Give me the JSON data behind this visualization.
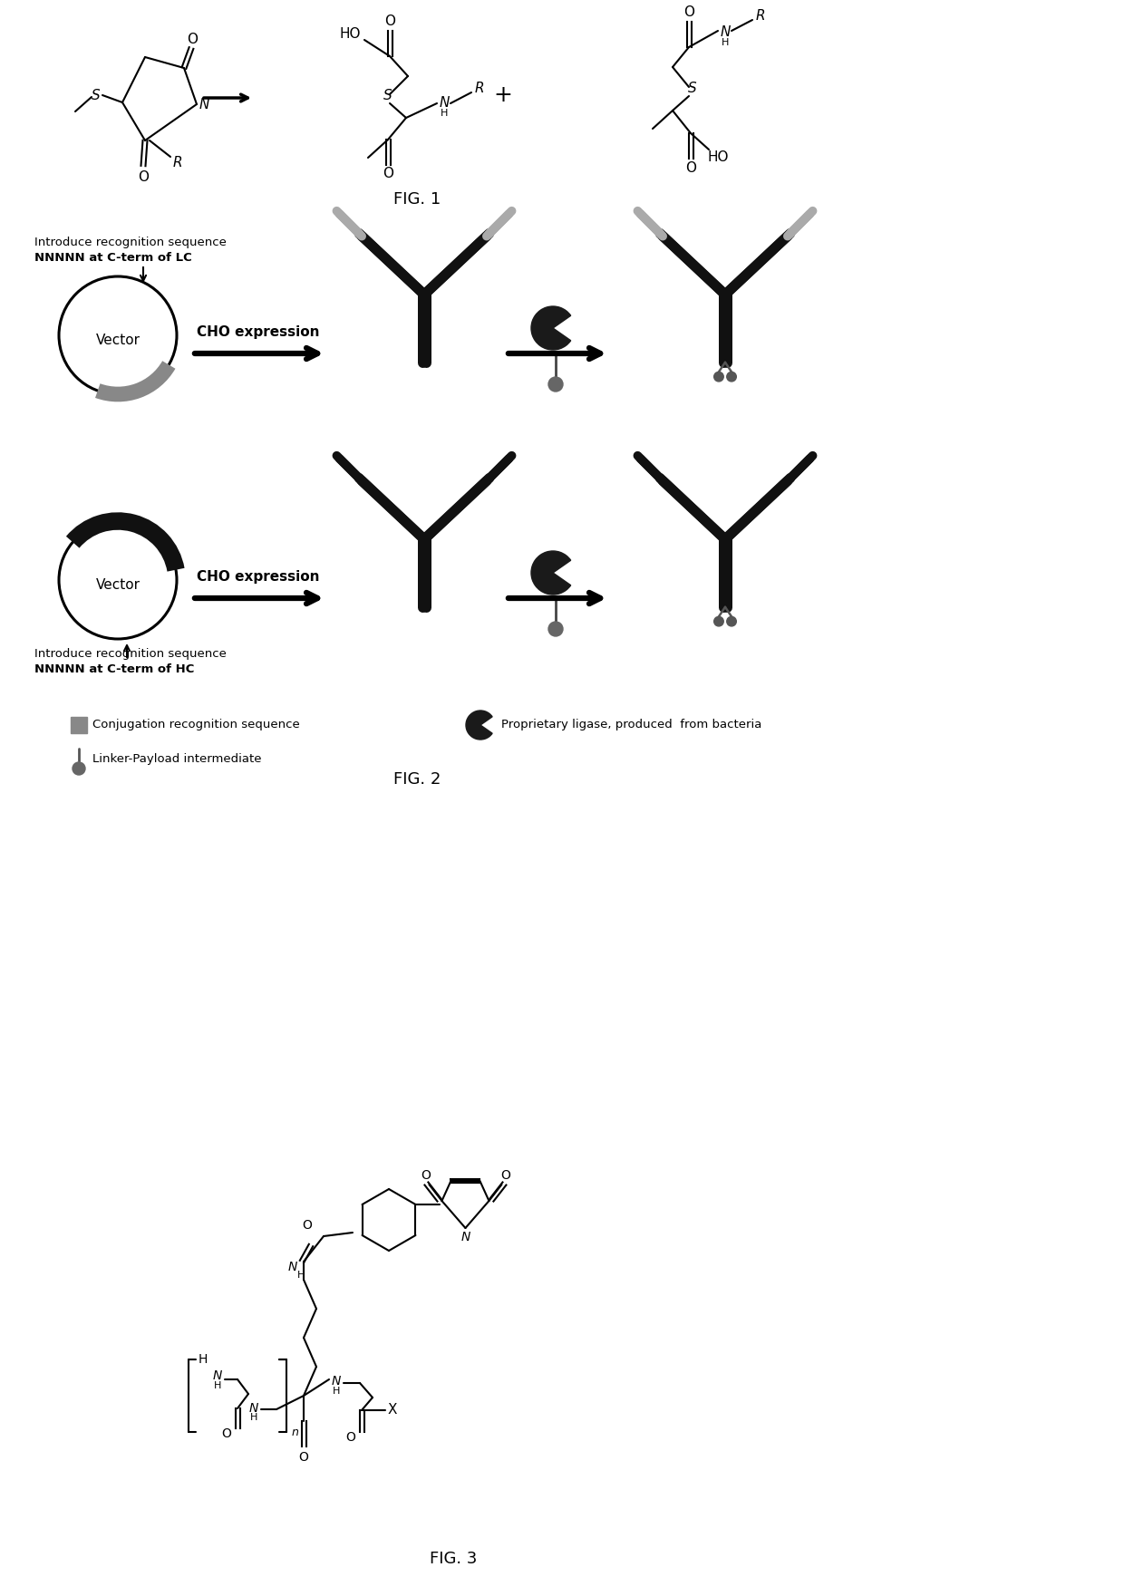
{
  "fig_width": 12.4,
  "fig_height": 17.61,
  "fig1_label": "FIG. 1",
  "fig2_label": "FIG. 2",
  "fig3_label": "FIG. 3",
  "cho_expression": "CHO expression",
  "row1_text1": "Introduce recognition sequence",
  "row1_text2": "NNNNN at C-term of LC",
  "row2_text1": "Introduce recognition sequence",
  "row2_text2": "NNNNN at C-term of HC",
  "legend1": "Conjugation recognition sequence",
  "legend2": "Linker-Payload intermediate",
  "legend3": "Proprietary ligase, produced  from bacteria"
}
